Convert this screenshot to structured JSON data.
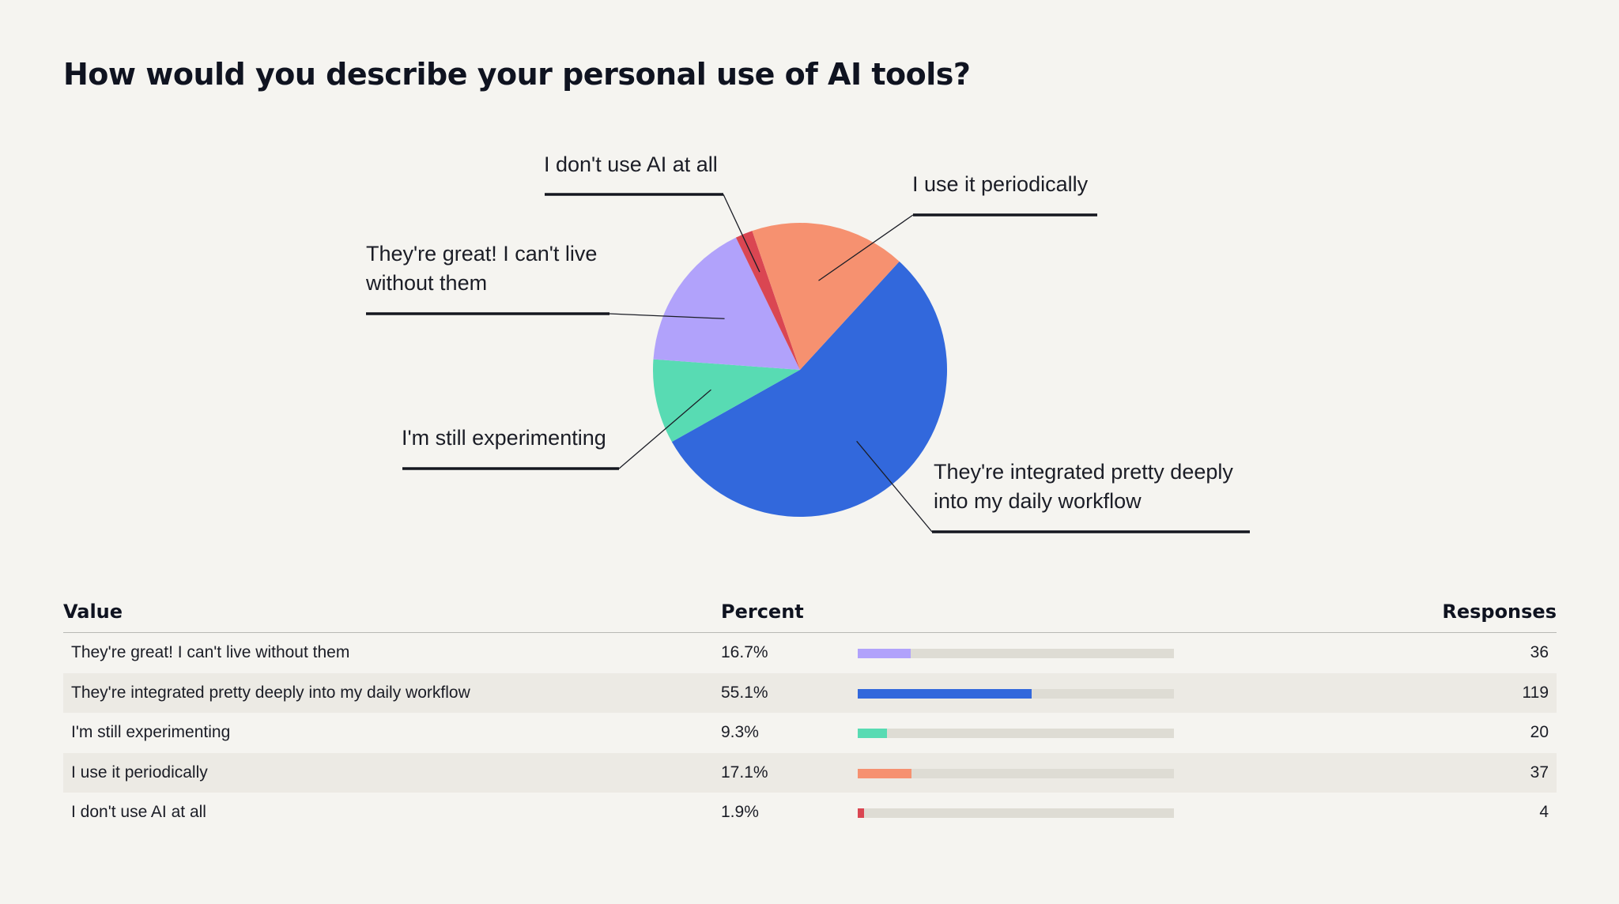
{
  "title": "How would you describe your personal use of AI tools?",
  "chart_data": {
    "type": "pie",
    "title": "How would you describe your personal use of AI tools?",
    "slices": [
      {
        "label": "They're integrated pretty deeply into my daily workflow",
        "label_lines": [
          "They're integrated pretty deeply",
          "into my daily workflow"
        ],
        "percent": 55.1,
        "responses": 119,
        "color": "#3268dc"
      },
      {
        "label": "I'm still experimenting",
        "label_lines": [
          "I'm still experimenting"
        ],
        "percent": 9.3,
        "responses": 20,
        "color": "#58dbb3"
      },
      {
        "label": "They're great! I can't live without them",
        "label_lines": [
          "They're great! I can't live",
          "without them"
        ],
        "percent": 16.7,
        "responses": 36,
        "color": "#b1a2fb"
      },
      {
        "label": "I don't use AI at all",
        "label_lines": [
          "I don't use AI at all"
        ],
        "percent": 1.9,
        "responses": 4,
        "color": "#da4652"
      },
      {
        "label": "I use it periodically",
        "label_lines": [
          "I use it periodically"
        ],
        "percent": 17.1,
        "responses": 37,
        "color": "#f69170"
      }
    ]
  },
  "table": {
    "headers": {
      "value": "Value",
      "percent": "Percent",
      "responses": "Responses"
    },
    "rows": [
      {
        "value": "They're great! I can't live without them",
        "percent": "16.7%",
        "fraction": 0.167,
        "responses": "36",
        "color": "#b1a2fb"
      },
      {
        "value": "They're integrated pretty deeply into my daily workflow",
        "percent": "55.1%",
        "fraction": 0.551,
        "responses": "119",
        "color": "#3268dc"
      },
      {
        "value": "I'm still experimenting",
        "percent": "9.3%",
        "fraction": 0.093,
        "responses": "20",
        "color": "#58dbb3"
      },
      {
        "value": "I use it periodically",
        "percent": "17.1%",
        "fraction": 0.171,
        "responses": "37",
        "color": "#f69170"
      },
      {
        "value": "I don't use AI at all",
        "percent": "1.9%",
        "fraction": 0.019,
        "responses": "4",
        "color": "#da4652"
      }
    ]
  }
}
